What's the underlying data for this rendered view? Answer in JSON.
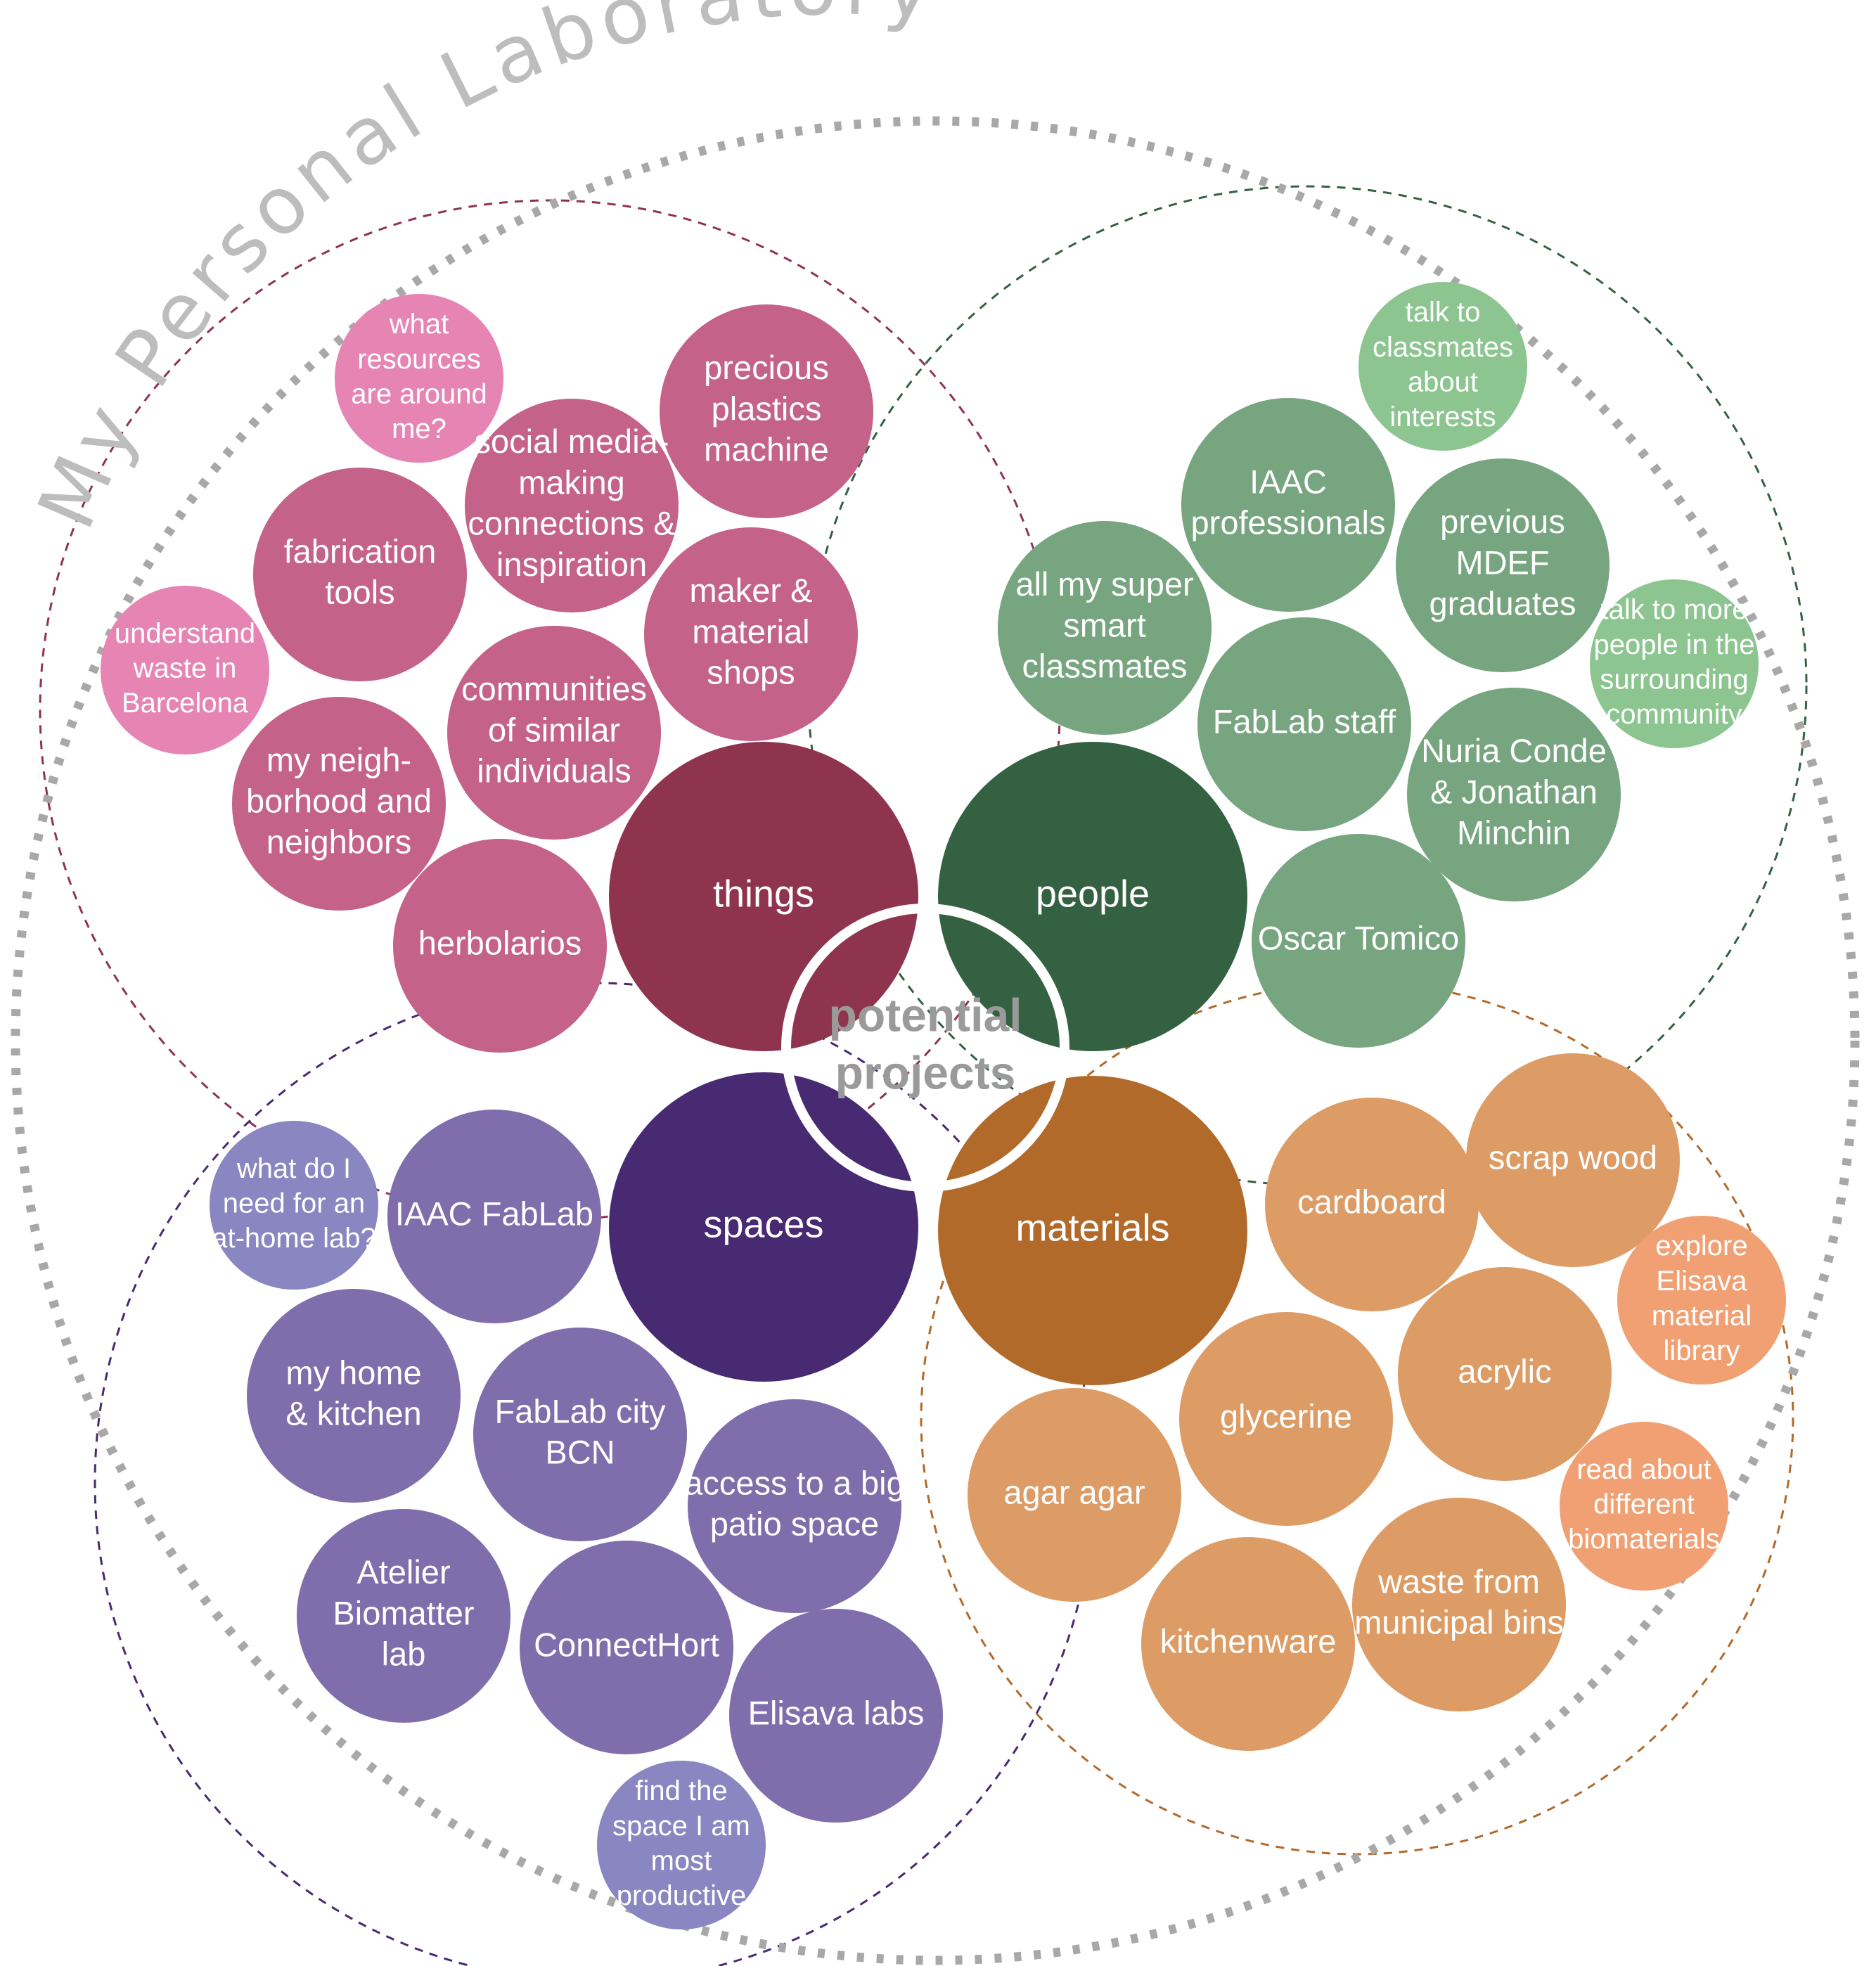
{
  "title": "My Personal Laboratory",
  "center": {
    "lines": [
      "potential",
      "projects"
    ]
  },
  "colors": {
    "outer_dots": "#a8a8a8",
    "title": "#bdbdbd",
    "center_text": "#9a9a9a",
    "things_hub": "#8f344e",
    "things_bubble": "#c4628a",
    "things_light": "#e685b4",
    "things_ring": "#8f344e",
    "people_hub": "#336141",
    "people_bubble": "#76a57f",
    "people_light": "#8cc590",
    "people_ring": "#336141",
    "spaces_hub": "#482a72",
    "spaces_bubble": "#806dab",
    "spaces_light": "#8a86c1",
    "spaces_ring": "#482a72",
    "materials_hub": "#b26a2b",
    "materials_bubble": "#dd9c65",
    "materials_light": "#f1a074",
    "materials_ring": "#b26a2b"
  },
  "groups": [
    {
      "id": "things",
      "hub": "things",
      "items": [
        {
          "lines": [
            "what",
            "resources",
            "are around",
            "me?"
          ],
          "tone": "light"
        },
        {
          "lines": [
            "precious",
            "plastics",
            "machine"
          ],
          "tone": "bubble"
        },
        {
          "lines": [
            "social media-",
            "making",
            "connections &",
            "inspiration"
          ],
          "tone": "bubble"
        },
        {
          "lines": [
            "fabrication",
            "tools"
          ],
          "tone": "bubble"
        },
        {
          "lines": [
            "maker &",
            "material",
            "shops"
          ],
          "tone": "bubble"
        },
        {
          "lines": [
            "understand",
            "waste in",
            "Barcelona"
          ],
          "tone": "light"
        },
        {
          "lines": [
            "communities",
            "of similar",
            "individuals"
          ],
          "tone": "bubble"
        },
        {
          "lines": [
            "my neigh-",
            "borhood and",
            "neighbors"
          ],
          "tone": "bubble"
        },
        {
          "lines": [
            "herbolarios"
          ],
          "tone": "bubble"
        }
      ]
    },
    {
      "id": "people",
      "hub": "people",
      "items": [
        {
          "lines": [
            "talk to",
            "classmates",
            "about",
            "interests"
          ],
          "tone": "light"
        },
        {
          "lines": [
            "IAAC",
            "professionals"
          ],
          "tone": "bubble"
        },
        {
          "lines": [
            "previous",
            "MDEF",
            "graduates"
          ],
          "tone": "bubble"
        },
        {
          "lines": [
            "all my super",
            "smart",
            "classmates"
          ],
          "tone": "bubble"
        },
        {
          "lines": [
            "talk to more",
            "people in the",
            "surrounding",
            "community"
          ],
          "tone": "light"
        },
        {
          "lines": [
            "FabLab staff"
          ],
          "tone": "bubble"
        },
        {
          "lines": [
            "Nuria Conde",
            "& Jonathan",
            "Minchin"
          ],
          "tone": "bubble"
        },
        {
          "lines": [
            "Oscar Tomico"
          ],
          "tone": "bubble"
        }
      ]
    },
    {
      "id": "spaces",
      "hub": "spaces",
      "items": [
        {
          "lines": [
            "what do I",
            "need for an",
            "at-home lab?"
          ],
          "tone": "light"
        },
        {
          "lines": [
            "IAAC FabLab"
          ],
          "tone": "bubble"
        },
        {
          "lines": [
            "my home",
            "& kitchen"
          ],
          "tone": "bubble"
        },
        {
          "lines": [
            "FabLab city",
            "BCN"
          ],
          "tone": "bubble"
        },
        {
          "lines": [
            "access to a big",
            "patio space"
          ],
          "tone": "bubble"
        },
        {
          "lines": [
            "Atelier",
            "Biomatter",
            "lab"
          ],
          "tone": "bubble"
        },
        {
          "lines": [
            "ConnectHort"
          ],
          "tone": "bubble"
        },
        {
          "lines": [
            "Elisava labs"
          ],
          "tone": "bubble"
        },
        {
          "lines": [
            "find the",
            "space I am",
            "most",
            "productive"
          ],
          "tone": "light"
        }
      ]
    },
    {
      "id": "materials",
      "hub": "materials",
      "items": [
        {
          "lines": [
            "scrap wood"
          ],
          "tone": "bubble"
        },
        {
          "lines": [
            "cardboard"
          ],
          "tone": "bubble"
        },
        {
          "lines": [
            "explore",
            "Elisava",
            "material",
            "library"
          ],
          "tone": "light"
        },
        {
          "lines": [
            "acrylic"
          ],
          "tone": "bubble"
        },
        {
          "lines": [
            "glycerine"
          ],
          "tone": "bubble"
        },
        {
          "lines": [
            "read about",
            "different",
            "biomaterials"
          ],
          "tone": "light"
        },
        {
          "lines": [
            "agar agar"
          ],
          "tone": "bubble"
        },
        {
          "lines": [
            "waste from",
            "municipal bins"
          ],
          "tone": "bubble"
        },
        {
          "lines": [
            "kitchenware"
          ],
          "tone": "bubble"
        }
      ]
    }
  ]
}
